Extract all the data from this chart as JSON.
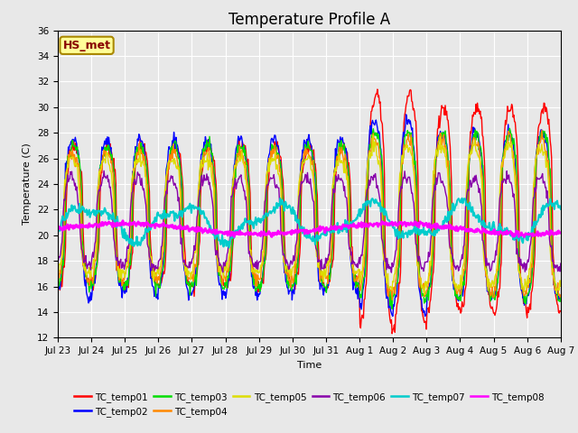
{
  "title": "Temperature Profile A",
  "xlabel": "Time",
  "ylabel": "Temperature (C)",
  "ylim": [
    12,
    36
  ],
  "yticks": [
    12,
    14,
    16,
    18,
    20,
    22,
    24,
    26,
    28,
    30,
    32,
    34,
    36
  ],
  "plot_bg_color": "#e8e8e8",
  "annotation_text": "HS_met",
  "annotation_bg": "#ffff99",
  "annotation_border": "#aa8800",
  "annotation_text_color": "#880000",
  "series": [
    {
      "name": "TC_temp01",
      "color": "#ff0000",
      "lw": 1.0
    },
    {
      "name": "TC_temp02",
      "color": "#0000ff",
      "lw": 1.0
    },
    {
      "name": "TC_temp03",
      "color": "#00dd00",
      "lw": 1.0
    },
    {
      "name": "TC_temp04",
      "color": "#ff8800",
      "lw": 1.0
    },
    {
      "name": "TC_temp05",
      "color": "#dddd00",
      "lw": 1.0
    },
    {
      "name": "TC_temp06",
      "color": "#8800aa",
      "lw": 1.0
    },
    {
      "name": "TC_temp07",
      "color": "#00cccc",
      "lw": 1.5
    },
    {
      "name": "TC_temp08",
      "color": "#ff00ff",
      "lw": 2.0
    }
  ],
  "n_points": 720,
  "x_start": 0,
  "x_end": 15,
  "xtick_positions": [
    0,
    1,
    2,
    3,
    4,
    5,
    6,
    7,
    8,
    9,
    10,
    11,
    12,
    13,
    14,
    15
  ],
  "xtick_labels": [
    "Jul 23",
    "Jul 24",
    "Jul 25",
    "Jul 26",
    "Jul 27",
    "Jul 28",
    "Jul 29",
    "Jul 30",
    "Jul 31",
    "Aug 1",
    "Aug 2",
    "Aug 3",
    "Aug 4",
    "Aug 5",
    "Aug 6",
    "Aug 7"
  ],
  "grid_color": "#ffffff",
  "title_fontsize": 12,
  "fig_width": 6.4,
  "fig_height": 4.8,
  "dpi": 100
}
